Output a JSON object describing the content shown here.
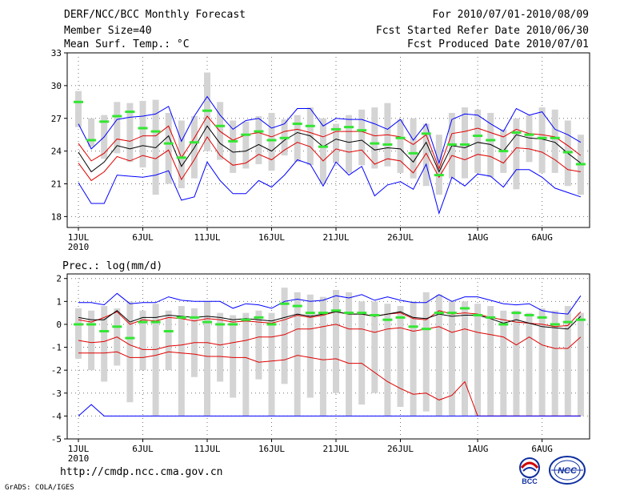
{
  "header": {
    "title": "DERF/NCC/BCC Monthly Forecast",
    "member_size": "Member Size=40",
    "variable1": "Mean Surf. Temp.: °C",
    "period": "For 2010/07/01-2010/08/09",
    "start_date": "Fcst Started Refer Date 2010/06/30",
    "produced_date": "Fcst Produced Date 2010/07/01"
  },
  "footer": {
    "url": "http://cmdp.ncc.cma.gov.cn",
    "credit": "GrADS: COLA/IGES",
    "logo_bcc": "BCC",
    "logo_ncc": "NCC"
  },
  "chart_data": [
    {
      "type": "line",
      "title": "Mean Surf. Temp.: °C",
      "x_tick_labels": [
        "1JUL",
        "6JUL",
        "11JUL",
        "16JUL",
        "21JUL",
        "26JUL",
        "1AUG",
        "6AUG"
      ],
      "x_tick_days": [
        1,
        6,
        11,
        16,
        21,
        26,
        32,
        37
      ],
      "x_year_label": "2010",
      "ylim": [
        17,
        33
      ],
      "y_ticks": [
        18,
        21,
        24,
        27,
        30,
        33
      ],
      "days": [
        1,
        2,
        3,
        4,
        5,
        6,
        7,
        8,
        9,
        10,
        11,
        12,
        13,
        14,
        15,
        16,
        17,
        18,
        19,
        20,
        21,
        22,
        23,
        24,
        25,
        26,
        27,
        28,
        29,
        30,
        31,
        32,
        33,
        34,
        35,
        36,
        37,
        38,
        39,
        40
      ],
      "box_low": [
        26.2,
        24.4,
        23.3,
        23.8,
        23.0,
        22.5,
        20.0,
        21.0,
        20.6,
        21.5,
        24.0,
        23.2,
        22.0,
        22.4,
        22.8,
        22.2,
        23.6,
        23.0,
        22.7,
        21.0,
        22.9,
        22.0,
        22.7,
        22.4,
        22.6,
        22.0,
        21.5,
        20.8,
        20.0,
        21.5,
        21.5,
        22.0,
        21.6,
        22.0,
        20.5,
        23.0,
        22.0,
        22.0,
        20.8,
        20.0
      ],
      "box_high": [
        29.5,
        27.0,
        27.3,
        28.5,
        28.4,
        28.6,
        28.7,
        27.5,
        26.8,
        27.2,
        31.2,
        28.5,
        26.8,
        26.7,
        27.2,
        27.5,
        26.9,
        27.3,
        28.0,
        27.0,
        26.5,
        27.3,
        27.8,
        28.0,
        28.4,
        26.9,
        27.0,
        26.5,
        25.5,
        27.5,
        28.0,
        27.8,
        27.5,
        26.0,
        27.0,
        27.3,
        28.0,
        27.8,
        26.8,
        25.5
      ],
      "obs": [
        28.5,
        25.0,
        26.7,
        27.2,
        27.6,
        26.1,
        25.8,
        24.7,
        23.4,
        24.8,
        27.7,
        26.3,
        24.9,
        25.5,
        25.8,
        25.0,
        25.2,
        26.5,
        26.3,
        24.4,
        26.0,
        26.2,
        25.9,
        24.7,
        24.6,
        25.2,
        23.8,
        25.6,
        21.8,
        24.6,
        24.6,
        25.4,
        25.0,
        24.0,
        25.7,
        25.5,
        25.2,
        25.2,
        23.9,
        22.8
      ],
      "series": [
        {
          "name": "max",
          "color": "#0000ff",
          "values": [
            26.5,
            24.2,
            25.3,
            26.9,
            27.1,
            27.2,
            27.4,
            28.1,
            24.9,
            27.2,
            29.0,
            27.3,
            26.0,
            26.8,
            27.0,
            26.1,
            26.5,
            27.9,
            27.9,
            26.3,
            27.0,
            26.9,
            26.9,
            26.5,
            26.0,
            26.9,
            25.0,
            26.5,
            22.9,
            26.9,
            27.4,
            27.3,
            26.5,
            25.8,
            27.9,
            27.3,
            27.6,
            26.0,
            25.5,
            24.8
          ]
        },
        {
          "name": "upper",
          "color": "#e00000",
          "values": [
            24.7,
            23.1,
            23.8,
            25.1,
            24.9,
            25.4,
            25.4,
            26.3,
            23.4,
            25.2,
            27.2,
            25.8,
            25.0,
            25.5,
            25.7,
            25.3,
            25.8,
            26.0,
            25.7,
            25.3,
            25.8,
            25.8,
            25.8,
            25.4,
            25.5,
            25.3,
            24.6,
            25.5,
            22.4,
            25.6,
            25.8,
            26.1,
            25.7,
            25.3,
            26.0,
            25.6,
            25.5,
            25.3,
            24.5,
            23.6
          ]
        },
        {
          "name": "mean",
          "color": "#000000",
          "values": [
            23.9,
            22.1,
            23.0,
            24.5,
            24.2,
            24.5,
            24.3,
            25.4,
            22.6,
            24.3,
            26.3,
            24.7,
            23.9,
            24.0,
            24.6,
            24.0,
            25.0,
            25.7,
            25.4,
            24.4,
            25.1,
            24.8,
            25.0,
            24.1,
            24.3,
            24.2,
            23.0,
            24.8,
            22.1,
            24.5,
            24.3,
            24.8,
            24.6,
            24.0,
            25.5,
            25.2,
            25.1,
            24.8,
            23.8,
            22.9
          ]
        },
        {
          "name": "lower",
          "color": "#e00000",
          "values": [
            22.9,
            21.3,
            22.1,
            23.5,
            23.1,
            23.6,
            23.3,
            24.1,
            21.4,
            23.2,
            25.3,
            23.6,
            22.7,
            22.9,
            23.7,
            23.2,
            24.1,
            24.8,
            24.4,
            23.1,
            24.2,
            23.9,
            24.1,
            22.8,
            23.3,
            23.1,
            22.0,
            23.8,
            21.6,
            23.6,
            23.2,
            23.7,
            23.5,
            22.9,
            24.3,
            24.2,
            23.9,
            23.2,
            22.3,
            22.1
          ]
        },
        {
          "name": "min",
          "color": "#0000ff",
          "values": [
            21.1,
            19.2,
            19.2,
            21.8,
            21.7,
            21.6,
            21.8,
            22.2,
            19.5,
            19.8,
            23.0,
            21.3,
            20.1,
            20.1,
            21.3,
            20.7,
            21.8,
            23.2,
            22.8,
            20.8,
            23.0,
            21.8,
            22.6,
            19.9,
            20.9,
            21.2,
            20.5,
            22.8,
            18.3,
            21.6,
            20.8,
            21.9,
            21.7,
            20.7,
            22.3,
            22.3,
            21.6,
            20.6,
            20.2,
            19.8
          ]
        }
      ]
    },
    {
      "type": "line",
      "title": "Prec.: log(mm/d)",
      "x_tick_labels": [
        "1JUL",
        "6JUL",
        "11JUL",
        "16JUL",
        "21JUL",
        "26JUL",
        "1AUG",
        "6AUG"
      ],
      "x_tick_days": [
        1,
        6,
        11,
        16,
        21,
        26,
        32,
        37
      ],
      "x_year_label": "2010",
      "ylim": [
        -5,
        2.2
      ],
      "y_ticks": [
        -5,
        -4,
        -3,
        -2,
        -1,
        0,
        1,
        2
      ],
      "days": [
        1,
        2,
        3,
        4,
        5,
        6,
        7,
        8,
        9,
        10,
        11,
        12,
        13,
        14,
        15,
        16,
        17,
        18,
        19,
        20,
        21,
        22,
        23,
        24,
        25,
        26,
        27,
        28,
        29,
        30,
        31,
        32,
        33,
        34,
        35,
        36,
        37,
        38,
        39,
        40
      ],
      "box_low": [
        -1.5,
        -2.0,
        -2.5,
        -1.8,
        -3.4,
        -2.0,
        -4.0,
        -2.0,
        -4.0,
        -2.3,
        -4.0,
        -2.5,
        -3.2,
        -4.0,
        -2.4,
        -4.0,
        -2.6,
        -4.0,
        -3.2,
        -4.0,
        -3.0,
        -4.0,
        -3.5,
        -3.0,
        -4.0,
        -3.6,
        -4.0,
        -3.8,
        -4.0,
        -4.0,
        -4.0,
        -4.0,
        -4.0,
        -4.0,
        -4.0,
        -4.0,
        -4.0,
        -4.0,
        -4.0,
        -4.0
      ],
      "box_high": [
        0.7,
        0.6,
        0.8,
        0.7,
        1.0,
        0.6,
        0.9,
        0.6,
        0.8,
        0.7,
        1.0,
        0.5,
        0.4,
        0.5,
        0.6,
        0.5,
        1.6,
        1.4,
        1.3,
        1.2,
        1.5,
        1.4,
        1.0,
        1.0,
        0.9,
        0.8,
        1.0,
        1.4,
        1.3,
        1.0,
        1.0,
        0.9,
        0.8,
        0.6,
        0.6,
        0.5,
        0.7,
        0.6,
        0.8,
        0.5
      ],
      "obs": [
        0.0,
        0.0,
        -0.3,
        -0.1,
        -0.6,
        0.1,
        0.1,
        -0.3,
        0.3,
        0.3,
        0.1,
        0.0,
        0.0,
        0.2,
        0.3,
        0.0,
        0.9,
        0.8,
        0.5,
        0.5,
        0.6,
        0.5,
        0.5,
        0.4,
        0.2,
        0.3,
        -0.1,
        -0.2,
        0.5,
        0.5,
        0.7,
        0.4,
        0.3,
        0.0,
        0.5,
        0.4,
        0.3,
        0.0,
        0.1,
        0.2
      ],
      "series": [
        {
          "name": "max",
          "color": "#0000ff",
          "values": [
            0.95,
            0.95,
            0.85,
            1.35,
            0.9,
            0.95,
            0.95,
            1.2,
            1.05,
            1.0,
            1.0,
            1.0,
            0.7,
            0.9,
            0.85,
            0.7,
            1.0,
            1.1,
            1.0,
            1.05,
            1.25,
            1.15,
            1.3,
            1.05,
            1.2,
            1.05,
            0.95,
            0.95,
            1.3,
            1.0,
            1.2,
            1.2,
            1.05,
            0.9,
            0.85,
            0.9,
            0.6,
            0.5,
            0.45,
            1.25
          ]
        },
        {
          "name": "upper",
          "color": "#e00000",
          "values": [
            0.2,
            0.1,
            0.3,
            0.55,
            0.0,
            0.2,
            0.15,
            0.3,
            0.25,
            0.15,
            0.25,
            0.2,
            0.1,
            0.15,
            0.1,
            0.05,
            0.2,
            0.4,
            0.3,
            0.4,
            0.55,
            0.45,
            0.45,
            0.35,
            0.45,
            0.5,
            0.25,
            0.2,
            0.6,
            0.45,
            0.5,
            0.45,
            0.3,
            0.2,
            0.1,
            0.05,
            0.0,
            -0.1,
            -0.05,
            0.55
          ]
        },
        {
          "name": "mean",
          "color": "#000000",
          "values": [
            0.3,
            0.2,
            0.2,
            0.6,
            0.1,
            0.3,
            0.3,
            0.4,
            0.35,
            0.3,
            0.35,
            0.3,
            0.2,
            0.25,
            0.2,
            0.15,
            0.3,
            0.45,
            0.35,
            0.45,
            0.55,
            0.45,
            0.45,
            0.35,
            0.45,
            0.55,
            0.3,
            0.25,
            0.45,
            0.35,
            0.4,
            0.4,
            0.25,
            0.05,
            0.2,
            0.05,
            -0.1,
            -0.15,
            -0.2,
            0.35
          ]
        },
        {
          "name": "lower",
          "color": "#e00000",
          "values": [
            -0.7,
            -0.8,
            -0.75,
            -0.55,
            -0.9,
            -1.1,
            -1.1,
            -0.95,
            -0.9,
            -0.8,
            -0.8,
            -0.9,
            -0.8,
            -0.7,
            -0.55,
            -0.55,
            -0.45,
            -0.2,
            -0.2,
            -0.1,
            0.0,
            -0.2,
            -0.2,
            -0.35,
            -0.2,
            -0.15,
            -0.3,
            -0.2,
            -0.1,
            -0.35,
            -0.2,
            -0.35,
            -0.45,
            -0.55,
            -0.9,
            -0.55,
            -0.9,
            -1.05,
            -1.05,
            -0.55
          ]
        },
        {
          "name": "lower2",
          "color": "#e00000",
          "values": [
            -1.25,
            -1.25,
            -1.25,
            -1.2,
            -1.45,
            -1.45,
            -1.35,
            -1.2,
            -1.25,
            -1.3,
            -1.4,
            -1.4,
            -1.45,
            -1.45,
            -1.65,
            -1.6,
            -1.55,
            -1.35,
            -1.45,
            -1.55,
            -1.5,
            -1.7,
            -1.7,
            -2.1,
            -2.5,
            -2.8,
            -3.05,
            -3.0,
            -3.3,
            -3.1,
            -2.5,
            -4.0,
            -4.0,
            -4.0,
            -4.0,
            -4.0,
            -4.0,
            -4.0,
            -4.0,
            -4.0
          ]
        },
        {
          "name": "min",
          "color": "#0000ff",
          "values": [
            -4.0,
            -3.5,
            -4.0,
            -4.0,
            -4.0,
            -4.0,
            -4.0,
            -4.0,
            -4.0,
            -4.0,
            -4.0,
            -4.0,
            -4.0,
            -4.0,
            -4.0,
            -4.0,
            -4.0,
            -4.0,
            -4.0,
            -4.0,
            -4.0,
            -4.0,
            -4.0,
            -4.0,
            -4.0,
            -4.0,
            -4.0,
            -4.0,
            -4.0,
            -4.0,
            -4.0,
            -4.0,
            -4.0,
            -4.0,
            -4.0,
            -4.0,
            -4.0,
            -4.0,
            -4.0,
            -4.0
          ]
        }
      ]
    }
  ]
}
